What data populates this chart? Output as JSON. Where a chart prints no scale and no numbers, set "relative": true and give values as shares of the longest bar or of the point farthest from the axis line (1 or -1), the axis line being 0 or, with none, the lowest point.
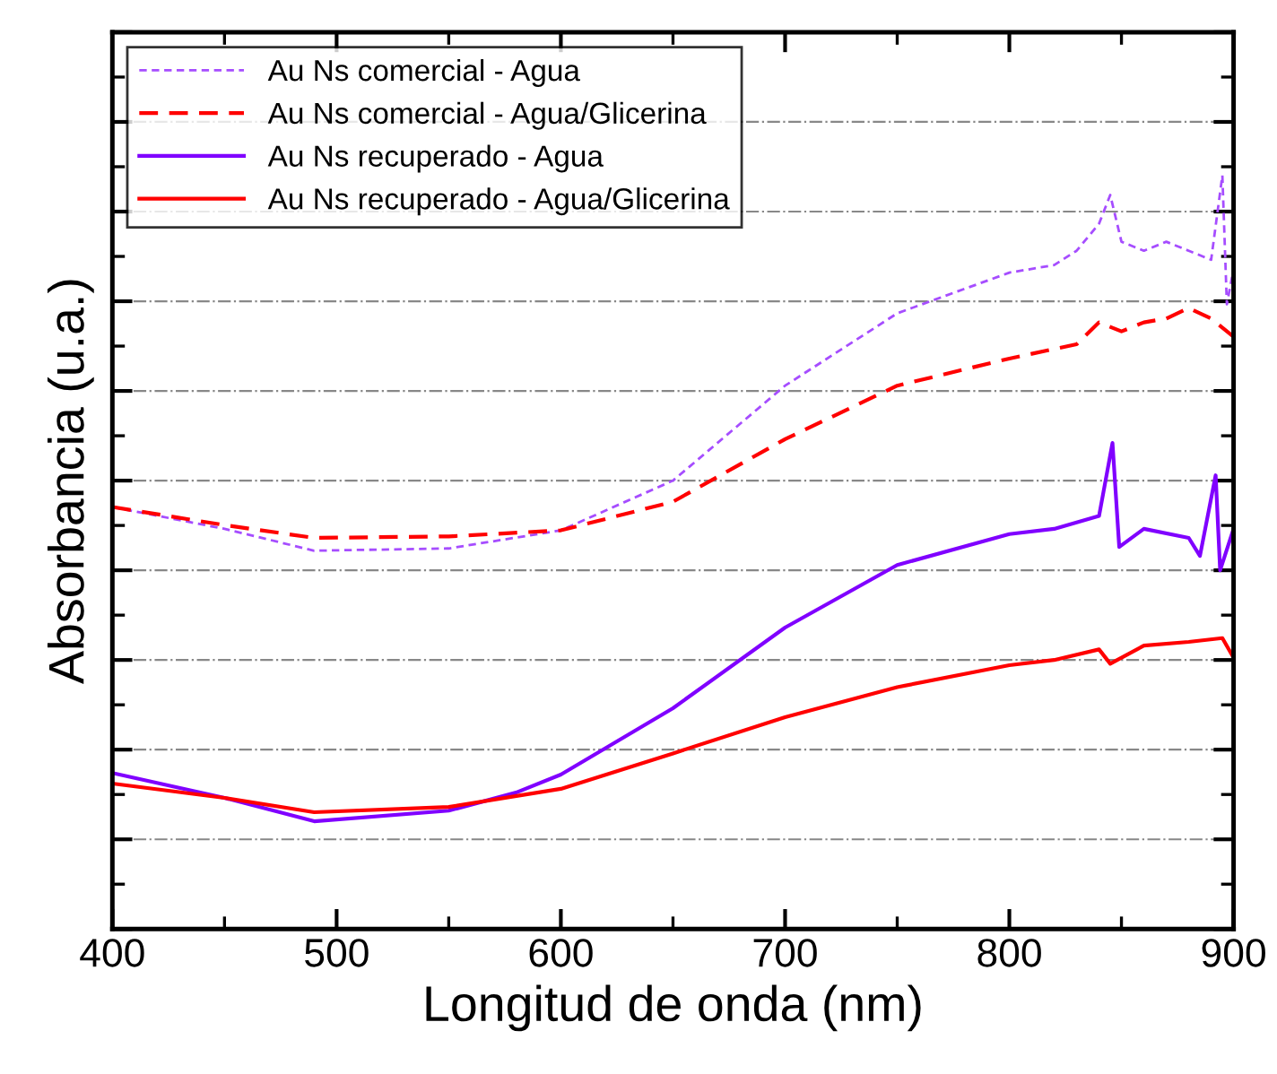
{
  "chart_data": {
    "type": "line",
    "relative": true,
    "xlabel": "Longitud de onda (nm)",
    "ylabel": "Absorbancia (u.a.)",
    "xlim": [
      400,
      900
    ],
    "xticks": [
      400,
      500,
      600,
      700,
      800,
      900
    ],
    "grid": "y",
    "legend": "top left",
    "tick_labels": "x",
    "series": [
      {
        "name": "Au Ns comercial - Agua",
        "color": "#a64dff",
        "line_style": "dotted",
        "x": [
          400,
          450,
          490,
          550,
          600,
          650,
          700,
          750,
          800,
          820,
          830,
          840,
          845,
          850,
          860,
          870,
          880,
          890,
          895,
          897,
          900
        ],
        "values": [
          0.56,
          0.531,
          0.502,
          0.505,
          0.529,
          0.595,
          0.721,
          0.817,
          0.871,
          0.881,
          0.9,
          0.936,
          0.974,
          0.912,
          0.9,
          0.912,
          0.9,
          0.888,
          1.0,
          0.829,
          0.876
        ]
      },
      {
        "name": "Au Ns comercial - Agua/Glicerina",
        "color": "#ff0000",
        "line_style": "dashed",
        "x": [
          400,
          450,
          490,
          550,
          600,
          650,
          700,
          750,
          800,
          830,
          840,
          850,
          860,
          870,
          880,
          890,
          900
        ],
        "values": [
          0.56,
          0.536,
          0.519,
          0.521,
          0.529,
          0.567,
          0.65,
          0.721,
          0.757,
          0.776,
          0.805,
          0.793,
          0.805,
          0.81,
          0.824,
          0.81,
          0.786
        ]
      },
      {
        "name": "Au Ns recuperado - Agua",
        "color": "#8000ff",
        "line_style": "solid",
        "x": [
          400,
          450,
          490,
          550,
          580,
          600,
          650,
          700,
          750,
          800,
          820,
          840,
          846,
          849,
          860,
          880,
          885,
          892,
          894,
          900
        ],
        "values": [
          0.207,
          0.174,
          0.143,
          0.157,
          0.181,
          0.205,
          0.293,
          0.4,
          0.483,
          0.524,
          0.531,
          0.548,
          0.645,
          0.507,
          0.531,
          0.519,
          0.495,
          0.602,
          0.476,
          0.531
        ]
      },
      {
        "name": "Au Ns recuperado - Agua/Glicerina",
        "color": "#ff0000",
        "line_style": "solid",
        "x": [
          400,
          450,
          490,
          550,
          600,
          650,
          700,
          750,
          800,
          820,
          840,
          845,
          860,
          880,
          895,
          900
        ],
        "values": [
          0.193,
          0.174,
          0.155,
          0.162,
          0.186,
          0.233,
          0.281,
          0.321,
          0.35,
          0.357,
          0.371,
          0.352,
          0.376,
          0.381,
          0.386,
          0.36
        ]
      }
    ]
  }
}
